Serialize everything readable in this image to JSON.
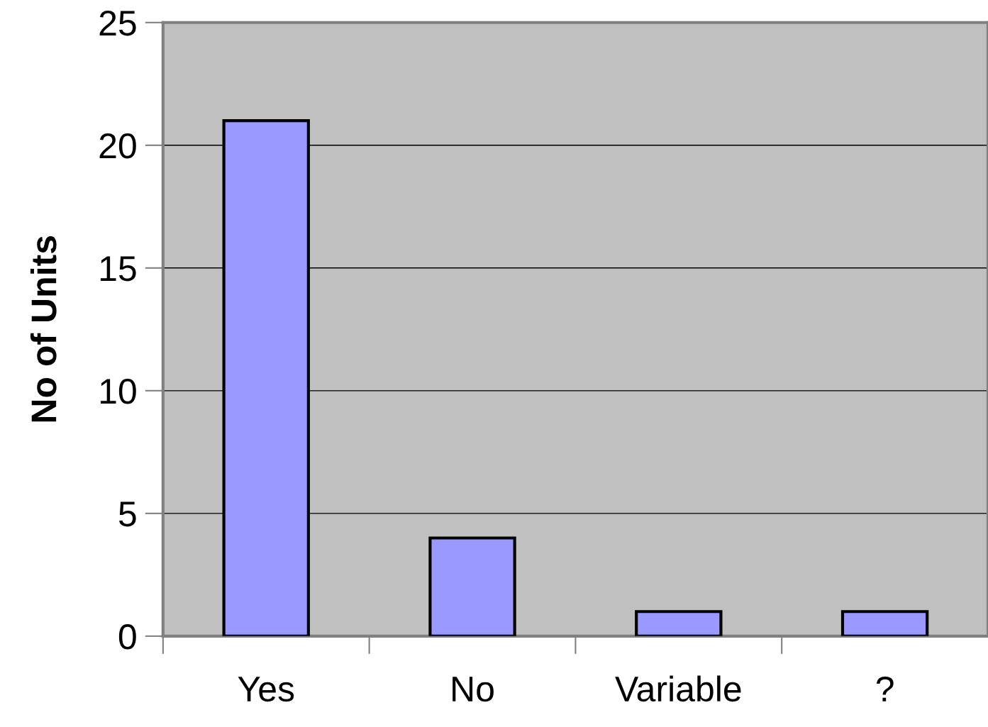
{
  "chart_data": {
    "type": "bar",
    "ylabel": "No of Units",
    "categories": [
      "Yes",
      "No",
      "Variable",
      "?"
    ],
    "values": [
      21,
      4,
      1,
      1
    ],
    "color": "#9999ff",
    "ylim": [
      0,
      25
    ],
    "yticks": [
      0,
      5,
      10,
      15,
      20,
      25
    ],
    "grid": "y",
    "legend": false
  }
}
